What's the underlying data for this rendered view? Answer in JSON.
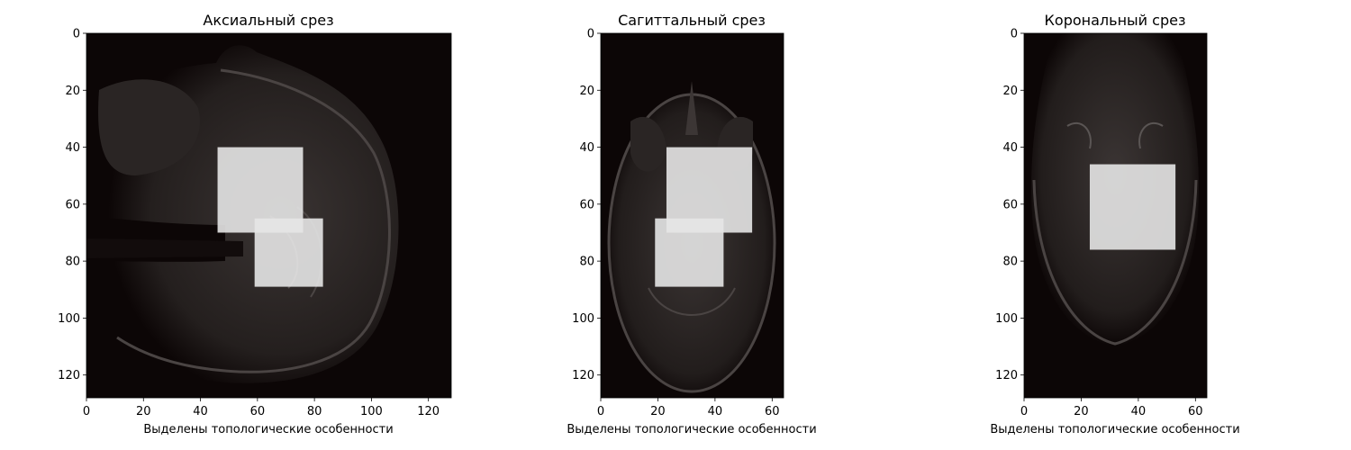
{
  "chart_data": [
    {
      "type": "heatmap",
      "title": "Аксиальный срез",
      "xlabel": "Выделены топологические особенности",
      "ylabel": "",
      "xlim": [
        0,
        128
      ],
      "ylim": [
        128,
        0
      ],
      "xticks": [
        "0",
        "20",
        "40",
        "60",
        "80",
        "100",
        "120"
      ],
      "yticks": [
        "0",
        "20",
        "40",
        "60",
        "80",
        "100",
        "120"
      ],
      "highlighted_regions": [
        {
          "x": [
            46,
            76
          ],
          "y": [
            40,
            70
          ]
        },
        {
          "x": [
            59,
            83
          ],
          "y": [
            65,
            89
          ]
        }
      ],
      "colormap": "gray",
      "highlight_color": "#e6e6e6"
    },
    {
      "type": "heatmap",
      "title": "Сагиттальный срез",
      "xlabel": "Выделены топологические особенности",
      "ylabel": "",
      "xlim": [
        0,
        64
      ],
      "ylim": [
        128,
        0
      ],
      "xticks": [
        "0",
        "20",
        "40",
        "60"
      ],
      "yticks": [
        "0",
        "20",
        "40",
        "60",
        "80",
        "100",
        "120"
      ],
      "highlighted_regions": [
        {
          "x": [
            23,
            53
          ],
          "y": [
            40,
            70
          ]
        },
        {
          "x": [
            19,
            43
          ],
          "y": [
            65,
            89
          ]
        }
      ],
      "colormap": "gray",
      "highlight_color": "#e6e6e6"
    },
    {
      "type": "heatmap",
      "title": "Корональный срез",
      "xlabel": "Выделены топологические особенности",
      "ylabel": "",
      "xlim": [
        0,
        64
      ],
      "ylim": [
        128,
        0
      ],
      "xticks": [
        "0",
        "20",
        "40",
        "60"
      ],
      "yticks": [
        "0",
        "20",
        "40",
        "60",
        "80",
        "100",
        "120"
      ],
      "highlighted_regions": [
        {
          "x": [
            23,
            53
          ],
          "y": [
            46,
            76
          ]
        }
      ],
      "colormap": "gray",
      "highlight_color": "#e6e6e6"
    }
  ]
}
